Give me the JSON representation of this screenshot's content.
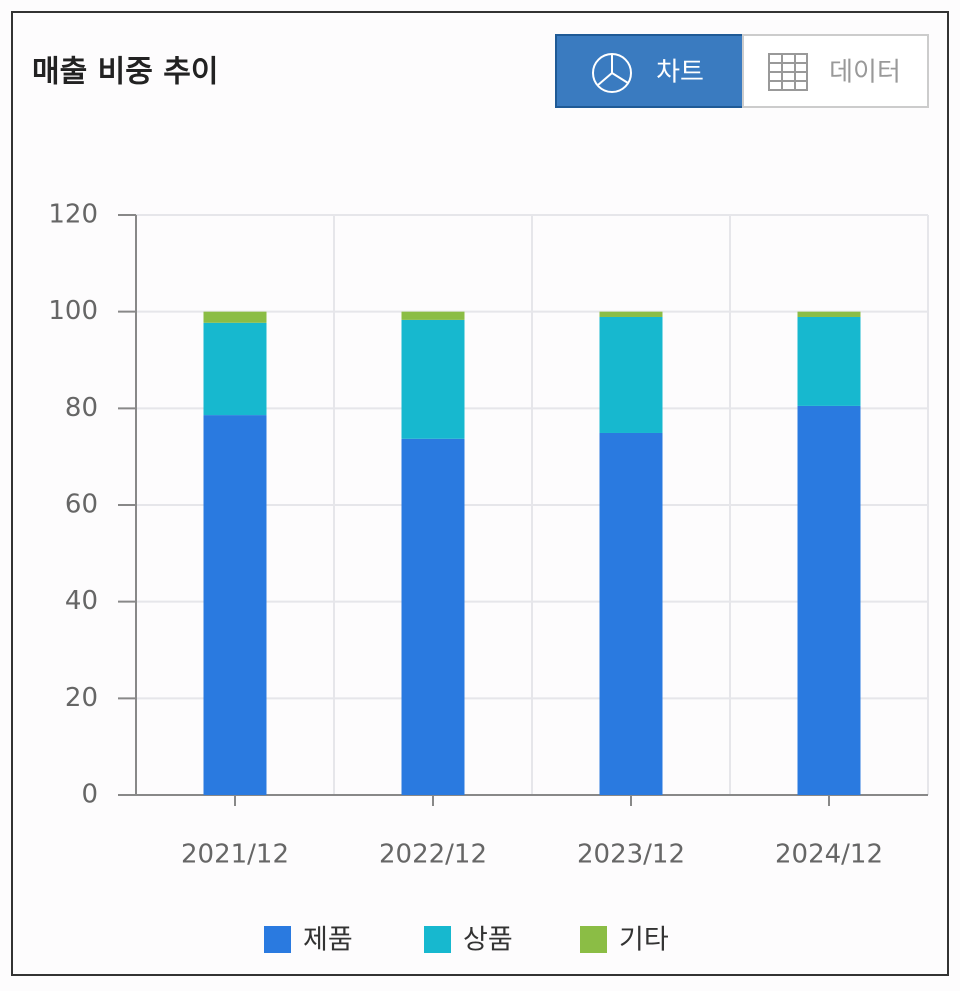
{
  "chart_data": {
    "type": "stacked-bar",
    "title": "매출 비중 추이",
    "buttons": [
      "차트",
      "데이터"
    ],
    "categories": [
      "2021/12",
      "2022/12",
      "2023/12",
      "2024/12"
    ],
    "series": [
      {
        "name": "제품",
        "color": "#2a7ae0",
        "values": [
          78.6,
          73.7,
          74.9,
          80.5
        ]
      },
      {
        "name": "상품",
        "color": "#17b8cf",
        "values": [
          19.1,
          24.6,
          24.0,
          18.4
        ]
      },
      {
        "name": "기타",
        "color": "#8bbd45",
        "values": [
          2.3,
          1.7,
          1.1,
          1.1
        ]
      }
    ],
    "ylim": [
      0,
      120
    ],
    "yticks": [
      0,
      20,
      40,
      60,
      80,
      100,
      120
    ],
    "grid": true
  }
}
